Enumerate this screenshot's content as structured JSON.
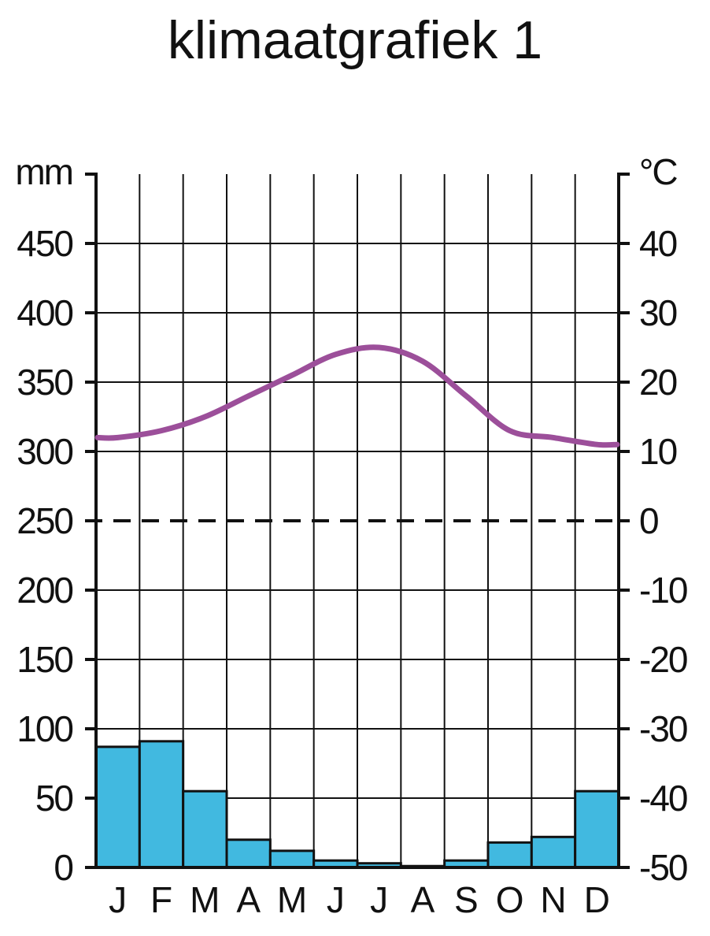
{
  "chart_data": {
    "type": "bar",
    "title": "klimaatgrafiek 1",
    "categories": [
      "J",
      "F",
      "M",
      "A",
      "M",
      "J",
      "J",
      "A",
      "S",
      "O",
      "N",
      "D"
    ],
    "precipitation": {
      "unit": "mm",
      "values": [
        87,
        91,
        55,
        20,
        12,
        5,
        3,
        1,
        5,
        18,
        22,
        55
      ],
      "ylim": [
        0,
        500
      ],
      "ticks": [
        "0",
        "50",
        "100",
        "150",
        "200",
        "250",
        "300",
        "350",
        "400",
        "450"
      ],
      "color": "#41b9e0"
    },
    "temperature": {
      "unit": "°C",
      "values": [
        12,
        13,
        15,
        18,
        21,
        24,
        25,
        23,
        18,
        13,
        12,
        11
      ],
      "ylim": [
        -50,
        50
      ],
      "ticks": [
        "-50",
        "-40",
        "-30",
        "-20",
        "-10",
        "0",
        "10",
        "20",
        "30",
        "40"
      ],
      "color": "#9c4f9a"
    },
    "zero_line": "dashed",
    "grid": true
  }
}
